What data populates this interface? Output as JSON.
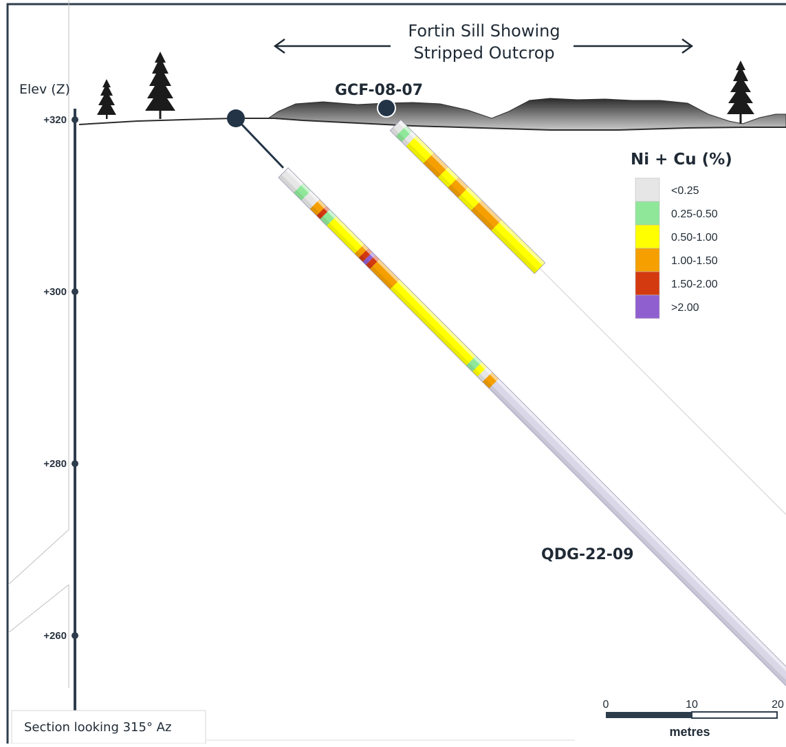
{
  "header": {
    "line1": "Fortin Sill Showing",
    "line2": "Stripped Outcrop"
  },
  "axis": {
    "title": "Elev (Z)",
    "ticks": [
      {
        "label": "+320",
        "value": 320
      },
      {
        "label": "+300",
        "value": 300
      },
      {
        "label": "+280",
        "value": 280
      },
      {
        "label": "+260",
        "value": 260
      }
    ]
  },
  "holes": {
    "gcf": "GCF-08-07",
    "qdg": "QDG-22-09"
  },
  "legend": {
    "title": "Ni + Cu (%)",
    "items": [
      {
        "label": "<0.25",
        "color": "#e6e6e6"
      },
      {
        "label": "0.25-0.50",
        "color": "#8fe89a"
      },
      {
        "label": "0.50-1.00",
        "color": "#ffff00"
      },
      {
        "label": "1.00-1.50",
        "color": "#f5a000"
      },
      {
        "label": "1.50-2.00",
        "color": "#d43a10"
      },
      {
        "label": ">2.00",
        "color": "#8f5fd0"
      }
    ]
  },
  "scale": {
    "ticks": [
      "0",
      "10",
      "20"
    ],
    "unit": "metres"
  },
  "footer": {
    "section": "Section looking 315° Az"
  },
  "colors": {
    "frame": "#2e3d4c",
    "collar": "#243447",
    "terrain": "#3a3a3a"
  }
}
